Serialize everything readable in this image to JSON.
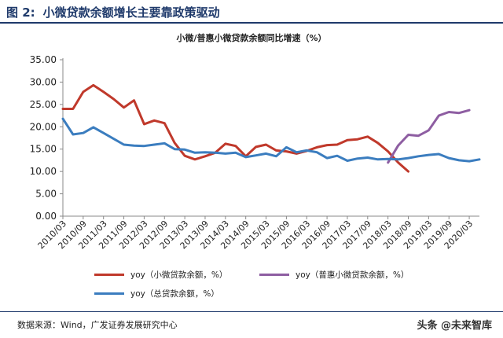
{
  "figure": {
    "label": "图 2:",
    "heading": "小微贷款余额增长主要靠政策驱动"
  },
  "source_note": "数据来源：Wind，广发证券发展研究中心",
  "watermark": "头条 @未来智库",
  "chart_data": {
    "type": "line",
    "title": "小微/普惠小微贷款余额同比增速（%）",
    "xlabel": "",
    "ylabel": "",
    "ylim": [
      0,
      35
    ],
    "yticks": [
      "0.00",
      "5.00",
      "10.00",
      "15.00",
      "20.00",
      "25.00",
      "30.00",
      "35.00"
    ],
    "x_tick_labels": [
      "2010/03",
      "2010/09",
      "2011/03",
      "2011/09",
      "2012/03",
      "2012/09",
      "2013/03",
      "2013/09",
      "2014/03",
      "2014/09",
      "2015/03",
      "2015/09",
      "2016/03",
      "2016/09",
      "2017/03",
      "2017/09",
      "2018/03",
      "2018/09",
      "2019/03",
      "2019/09",
      "2020/03"
    ],
    "grid": false,
    "legend_position": "bottom",
    "series": [
      {
        "name": "yoy（小微贷款余额，%）",
        "color": "#c0392b",
        "values": [
          {
            "x": "2010/03",
            "y": 24.0
          },
          {
            "x": "2010/06",
            "y": 24.0
          },
          {
            "x": "2010/09",
            "y": 27.8
          },
          {
            "x": "2010/12",
            "y": 29.3
          },
          {
            "x": "2011/03",
            "y": 27.8
          },
          {
            "x": "2011/06",
            "y": 26.2
          },
          {
            "x": "2011/09",
            "y": 24.3
          },
          {
            "x": "2011/12",
            "y": 25.9
          },
          {
            "x": "2012/03",
            "y": 20.6
          },
          {
            "x": "2012/06",
            "y": 21.4
          },
          {
            "x": "2012/09",
            "y": 20.8
          },
          {
            "x": "2012/12",
            "y": 16.4
          },
          {
            "x": "2013/03",
            "y": 13.5
          },
          {
            "x": "2013/06",
            "y": 12.7
          },
          {
            "x": "2013/09",
            "y": 13.4
          },
          {
            "x": "2013/12",
            "y": 14.2
          },
          {
            "x": "2014/03",
            "y": 16.2
          },
          {
            "x": "2014/06",
            "y": 15.7
          },
          {
            "x": "2014/09",
            "y": 13.4
          },
          {
            "x": "2014/12",
            "y": 15.5
          },
          {
            "x": "2015/03",
            "y": 16.0
          },
          {
            "x": "2015/06",
            "y": 14.7
          },
          {
            "x": "2015/09",
            "y": 14.5
          },
          {
            "x": "2015/12",
            "y": 14.0
          },
          {
            "x": "2016/03",
            "y": 14.6
          },
          {
            "x": "2016/06",
            "y": 15.4
          },
          {
            "x": "2016/09",
            "y": 15.9
          },
          {
            "x": "2016/12",
            "y": 16.0
          },
          {
            "x": "2017/03",
            "y": 17.0
          },
          {
            "x": "2017/06",
            "y": 17.2
          },
          {
            "x": "2017/09",
            "y": 17.8
          },
          {
            "x": "2017/12",
            "y": 16.4
          },
          {
            "x": "2018/03",
            "y": 14.5
          },
          {
            "x": "2018/06",
            "y": 12.0
          },
          {
            "x": "2018/09",
            "y": 10.0
          }
        ]
      },
      {
        "name": "yoy（普惠小微贷款余额，%）",
        "color": "#8e5ea2",
        "values": [
          {
            "x": "2018/03",
            "y": 12.0
          },
          {
            "x": "2018/06",
            "y": 15.8
          },
          {
            "x": "2018/09",
            "y": 18.2
          },
          {
            "x": "2018/12",
            "y": 18.0
          },
          {
            "x": "2019/03",
            "y": 19.2
          },
          {
            "x": "2019/06",
            "y": 22.5
          },
          {
            "x": "2019/09",
            "y": 23.3
          },
          {
            "x": "2019/12",
            "y": 23.1
          },
          {
            "x": "2020/03",
            "y": 23.7
          }
        ]
      },
      {
        "name": "yoy（总贷款余额，%）",
        "color": "#3b7dbf",
        "values": [
          {
            "x": "2010/03",
            "y": 21.8
          },
          {
            "x": "2010/06",
            "y": 18.3
          },
          {
            "x": "2010/09",
            "y": 18.6
          },
          {
            "x": "2010/12",
            "y": 19.9
          },
          {
            "x": "2011/03",
            "y": 18.6
          },
          {
            "x": "2011/06",
            "y": 17.3
          },
          {
            "x": "2011/09",
            "y": 16.0
          },
          {
            "x": "2011/12",
            "y": 15.8
          },
          {
            "x": "2012/03",
            "y": 15.7
          },
          {
            "x": "2012/06",
            "y": 16.0
          },
          {
            "x": "2012/09",
            "y": 16.3
          },
          {
            "x": "2012/12",
            "y": 15.0
          },
          {
            "x": "2013/03",
            "y": 14.9
          },
          {
            "x": "2013/06",
            "y": 14.2
          },
          {
            "x": "2013/09",
            "y": 14.3
          },
          {
            "x": "2013/12",
            "y": 14.2
          },
          {
            "x": "2014/03",
            "y": 14.0
          },
          {
            "x": "2014/06",
            "y": 14.2
          },
          {
            "x": "2014/09",
            "y": 13.2
          },
          {
            "x": "2014/12",
            "y": 13.6
          },
          {
            "x": "2015/03",
            "y": 14.0
          },
          {
            "x": "2015/06",
            "y": 13.4
          },
          {
            "x": "2015/09",
            "y": 15.4
          },
          {
            "x": "2015/12",
            "y": 14.3
          },
          {
            "x": "2016/03",
            "y": 14.7
          },
          {
            "x": "2016/06",
            "y": 14.3
          },
          {
            "x": "2016/09",
            "y": 13.0
          },
          {
            "x": "2016/12",
            "y": 13.5
          },
          {
            "x": "2017/03",
            "y": 12.4
          },
          {
            "x": "2017/06",
            "y": 12.9
          },
          {
            "x": "2017/09",
            "y": 13.1
          },
          {
            "x": "2017/12",
            "y": 12.7
          },
          {
            "x": "2018/03",
            "y": 12.8
          },
          {
            "x": "2018/06",
            "y": 12.7
          },
          {
            "x": "2018/09",
            "y": 13.0
          },
          {
            "x": "2018/12",
            "y": 13.4
          },
          {
            "x": "2019/03",
            "y": 13.7
          },
          {
            "x": "2019/06",
            "y": 13.9
          },
          {
            "x": "2019/09",
            "y": 13.0
          },
          {
            "x": "2019/12",
            "y": 12.5
          },
          {
            "x": "2020/03",
            "y": 12.3
          },
          {
            "x": "2020/06",
            "y": 12.7
          }
        ]
      }
    ]
  }
}
